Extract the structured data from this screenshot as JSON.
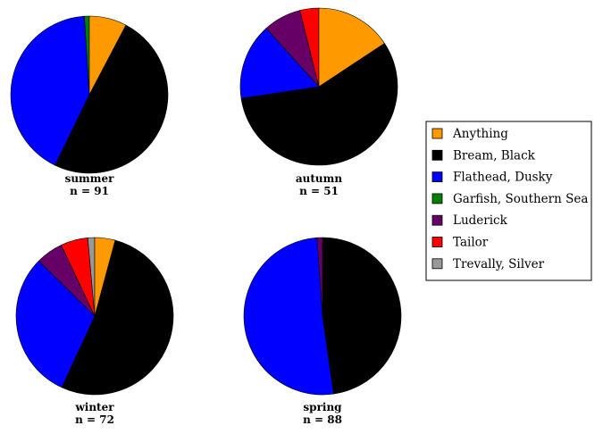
{
  "chart_data": {
    "type": "pie",
    "title": "",
    "categories": [
      "Anything",
      "Bream, Black",
      "Flathead, Dusky",
      "Garfish, Southern Sea",
      "Luderick",
      "Tailor",
      "Trevally, Silver"
    ],
    "colors": {
      "Anything": "#FF9900",
      "Bream, Black": "#000000",
      "Flathead, Dusky": "#0000FF",
      "Garfish, Southern Sea": "#008000",
      "Luderick": "#660066",
      "Tailor": "#FF0000",
      "Trevally, Silver": "#999999"
    },
    "legend_position": "right",
    "pies": [
      {
        "season": "summer",
        "n_label": "n = 91",
        "values": {
          "Anything": 7.7,
          "Bream, Black": 49.5,
          "Flathead, Dusky": 41.8,
          "Garfish, Southern Sea": 1.0,
          "Luderick": 0,
          "Tailor": 0,
          "Trevally, Silver": 0
        }
      },
      {
        "season": "autumn",
        "n_label": "n = 51",
        "values": {
          "Anything": 15.7,
          "Bream, Black": 56.9,
          "Flathead, Dusky": 15.7,
          "Garfish, Southern Sea": 0,
          "Luderick": 7.8,
          "Tailor": 3.9,
          "Trevally, Silver": 0
        }
      },
      {
        "season": "winter",
        "n_label": "n = 72",
        "values": {
          "Anything": 4.2,
          "Bream, Black": 52.8,
          "Flathead, Dusky": 30.6,
          "Garfish, Southern Sea": 0,
          "Luderick": 5.6,
          "Tailor": 5.6,
          "Trevally, Silver": 1.4
        }
      },
      {
        "season": "spring",
        "n_label": "n = 88",
        "values": {
          "Anything": 0,
          "Bream, Black": 47.7,
          "Flathead, Dusky": 51.1,
          "Garfish, Southern Sea": 0,
          "Luderick": 1.1,
          "Tailor": 0,
          "Trevally, Silver": 0
        }
      }
    ]
  }
}
